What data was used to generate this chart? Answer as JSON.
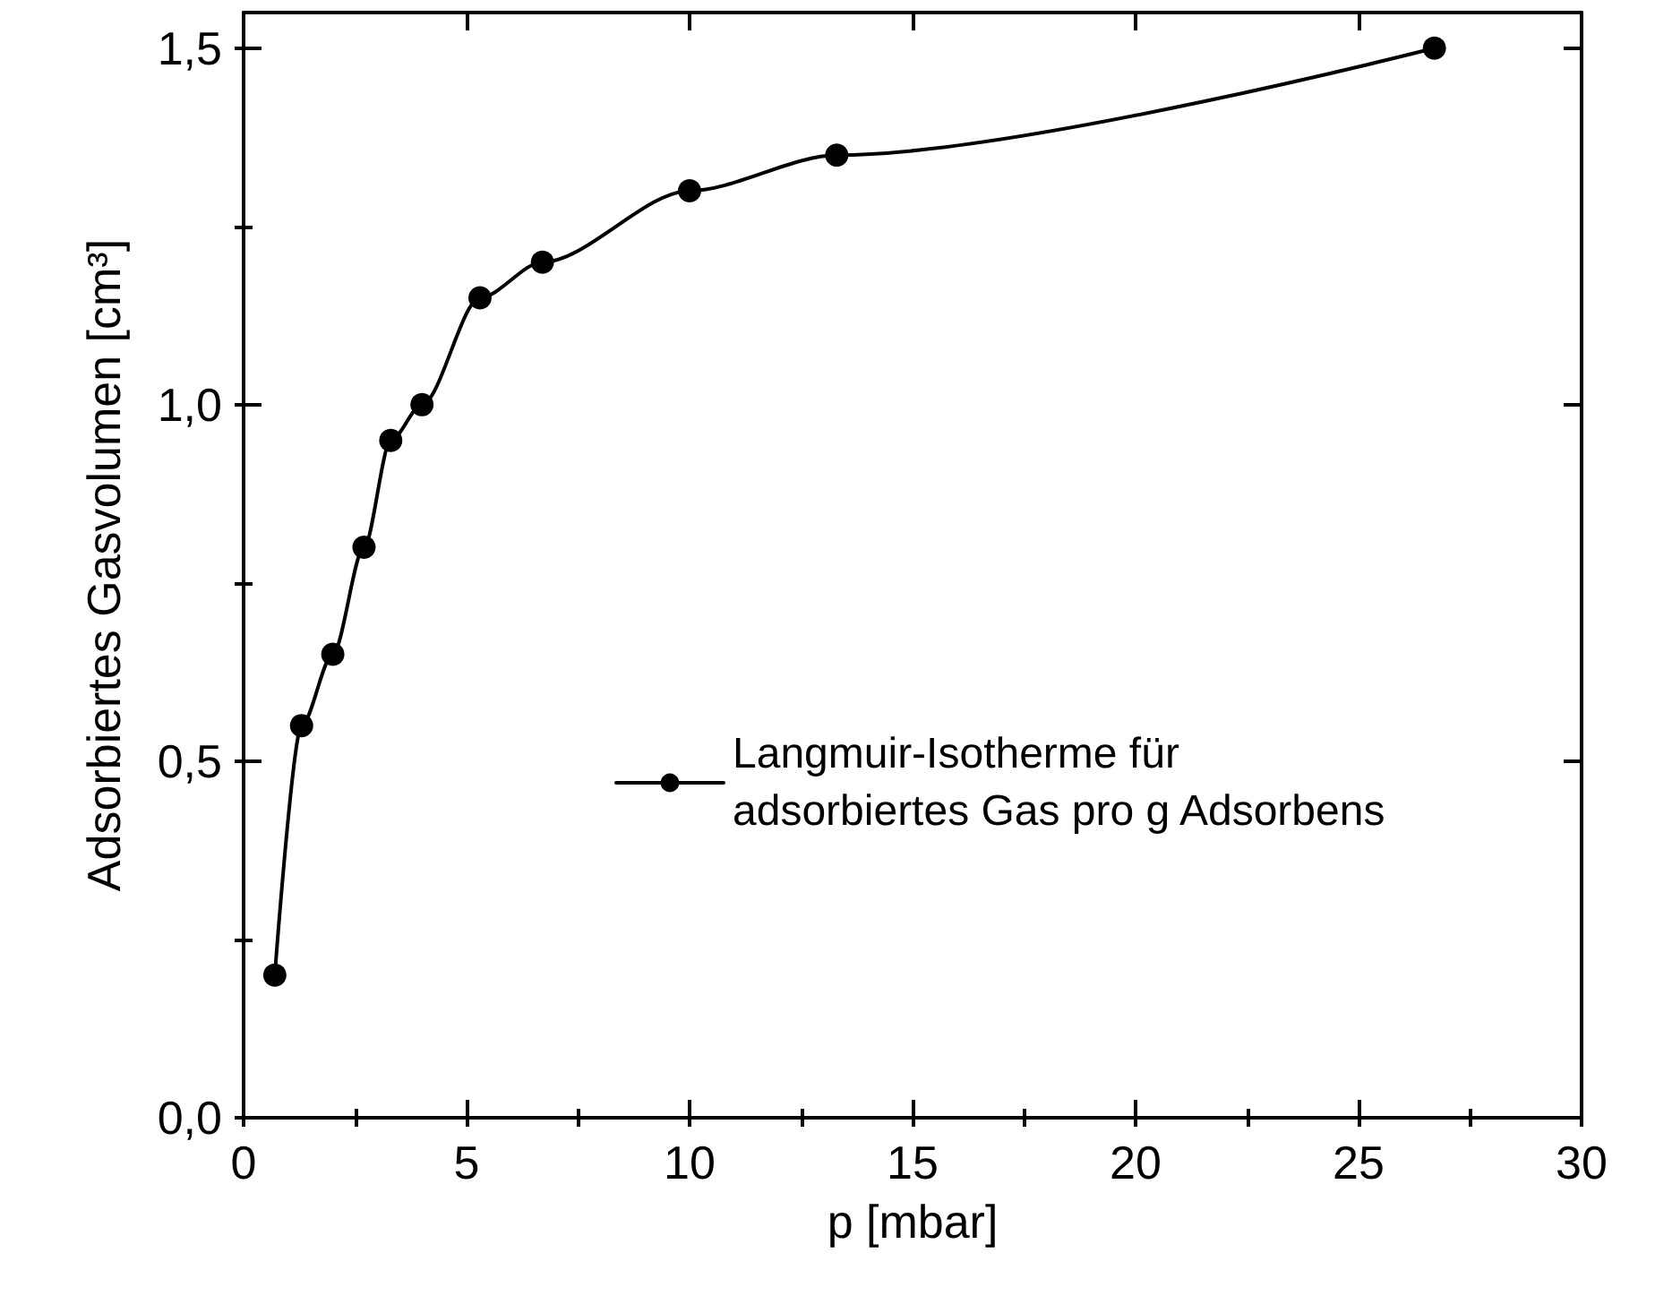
{
  "chart_data": {
    "type": "line",
    "xlabel": "p [mbar]",
    "ylabel": "Adsorbiertes Gasvolumen [cm³]",
    "x": [
      0.7,
      1.3,
      2,
      2.7,
      3.3,
      4,
      5.3,
      6.7,
      10,
      13.3,
      26.7
    ],
    "series": [
      {
        "name": "Langmuir-Isotherme für adsorbiertes Gas pro g Adsorbens",
        "color": "#000000",
        "values": [
          0.2,
          0.55,
          0.65,
          0.8,
          0.95,
          1.0,
          1.15,
          1.2,
          1.3,
          1.35,
          1.5
        ]
      }
    ],
    "xlim": [
      0,
      30
    ],
    "xticks": [
      0,
      5,
      10,
      15,
      20,
      25,
      30
    ],
    "ylim": [
      0,
      1.55
    ],
    "yticks": [
      {
        "value": 0,
        "label": "0,0"
      },
      {
        "value": 0.5,
        "label": "0,5"
      },
      {
        "value": 1,
        "label": "1,0"
      },
      {
        "value": 1.5,
        "label": "1,5"
      }
    ],
    "marker": "circle",
    "line_style": "solid",
    "grid": false,
    "legend": "center right"
  }
}
